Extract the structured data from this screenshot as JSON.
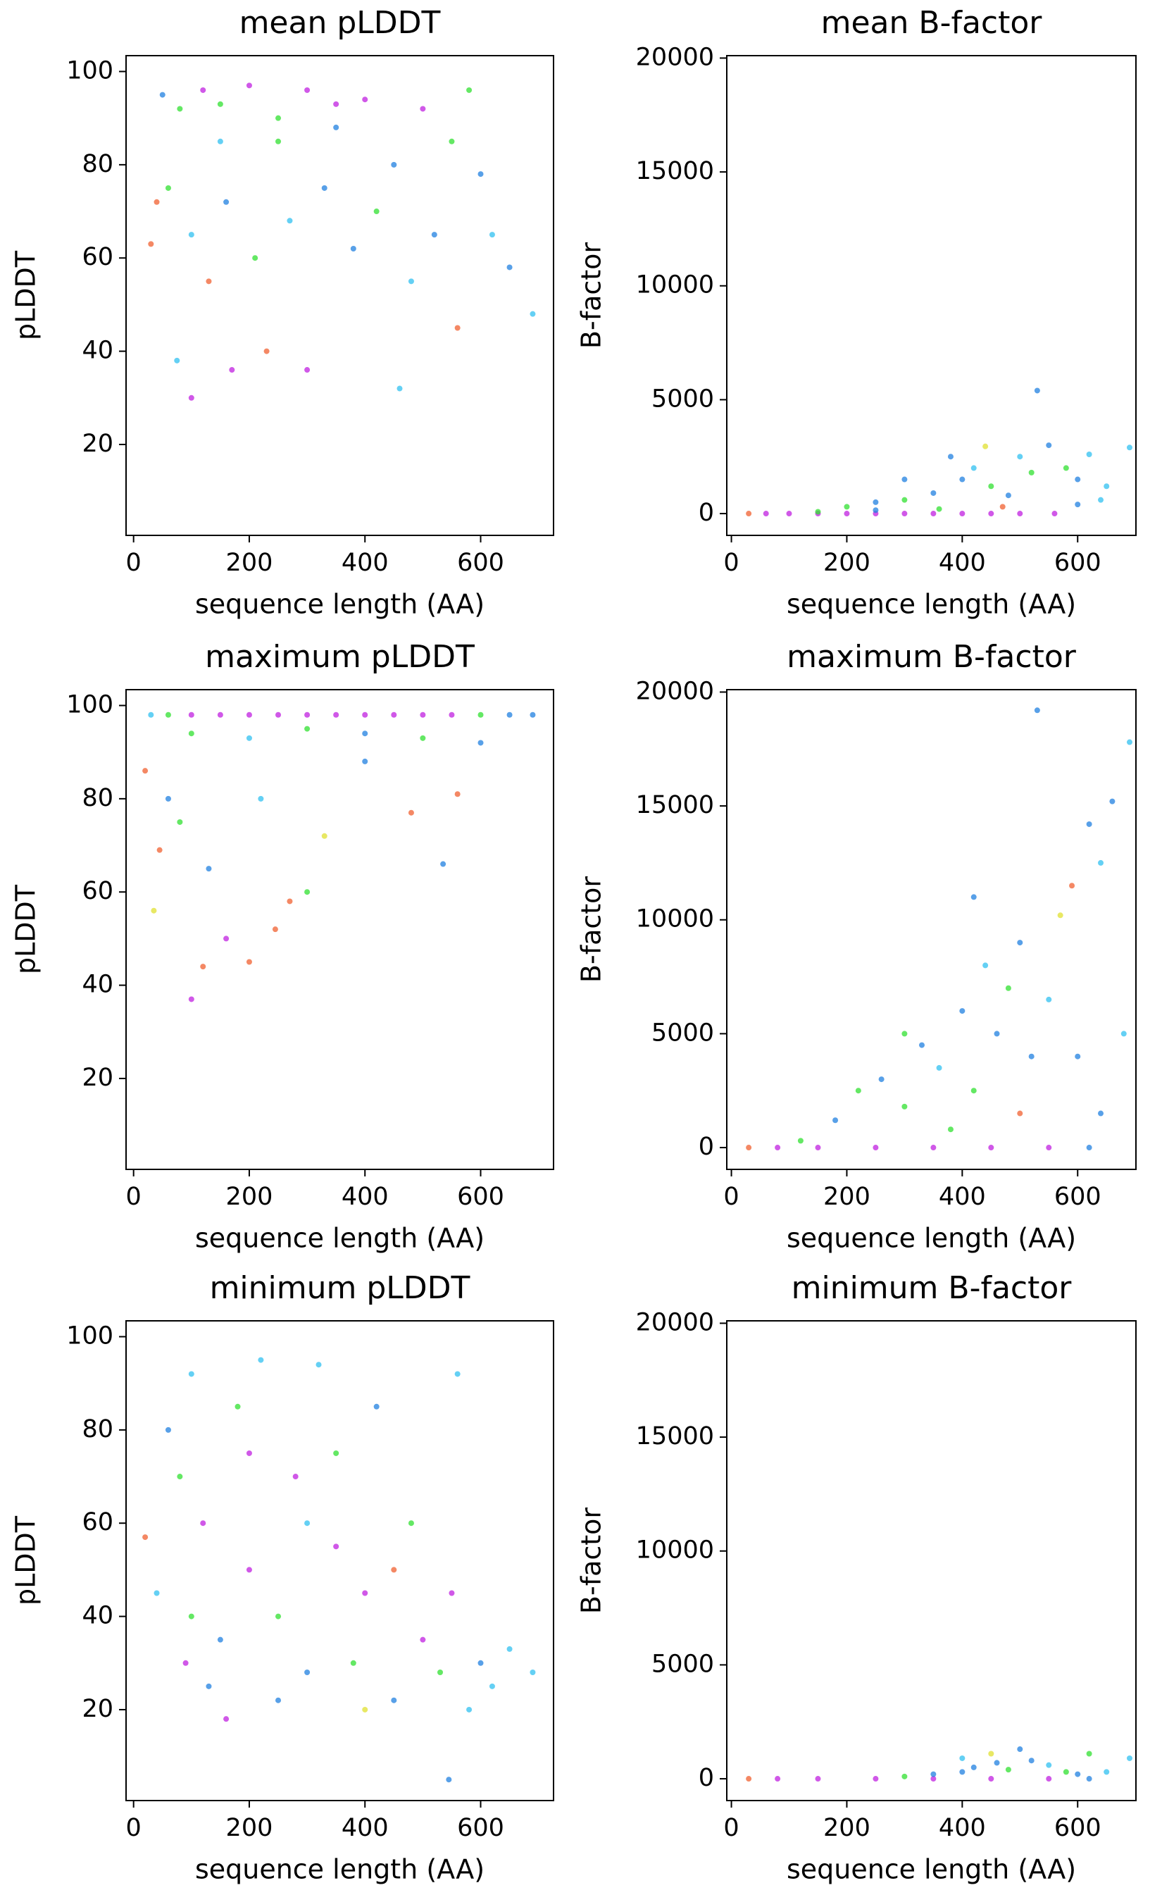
{
  "chart_data": [
    {
      "type": "scatter",
      "title": "mean pLDDT",
      "x_label": "sequence length (AA)",
      "y_label": "pLDDT",
      "xlim": [
        -13,
        726
      ],
      "ylim": [
        0.5,
        103.4
      ],
      "xticks": [
        0,
        200,
        400,
        600
      ],
      "yticks": [
        20,
        40,
        60,
        80,
        100
      ],
      "x": [
        50,
        80,
        120,
        150,
        200,
        250,
        300,
        350,
        400,
        450,
        500,
        550,
        580,
        600,
        620,
        650,
        690,
        60,
        100,
        130,
        160,
        210,
        270,
        330,
        380,
        420,
        480,
        520,
        560,
        40,
        75,
        100,
        170,
        230,
        300,
        460,
        30,
        250,
        350,
        150
      ],
      "values": [
        95,
        92,
        96,
        85,
        97,
        90,
        96,
        88,
        94,
        80,
        92,
        85,
        96,
        78,
        65,
        58,
        48,
        75,
        65,
        55,
        72,
        60,
        68,
        75,
        62,
        70,
        55,
        65,
        45,
        72,
        38,
        30,
        36,
        40,
        36,
        32,
        63,
        85,
        93,
        93
      ],
      "colors": [
        "#2080e0",
        "#30e030",
        "#c020e0",
        "#30c0f0",
        "#c020e0",
        "#30e030",
        "#c020e0",
        "#2080e0",
        "#c020e0",
        "#2080e0",
        "#c020e0",
        "#30e030",
        "#30e030",
        "#2080e0",
        "#30c0f0",
        "#2080e0",
        "#30c0f0",
        "#30e030",
        "#30c0f0",
        "#f06030",
        "#2080e0",
        "#30e030",
        "#30c0f0",
        "#2080e0",
        "#2080e0",
        "#30e030",
        "#30c0f0",
        "#2080e0",
        "#f06030",
        "#f06030",
        "#30c0f0",
        "#c020e0",
        "#c020e0",
        "#f06030",
        "#c020e0",
        "#30c0f0",
        "#f06030",
        "#30e030",
        "#c020e0",
        "#30e030"
      ]
    },
    {
      "type": "scatter",
      "title": "mean B-factor",
      "x_label": "sequence length (AA)",
      "y_label": "B-factor",
      "xlim": [
        -8,
        701
      ],
      "ylim": [
        -957,
        20106
      ],
      "xticks": [
        0,
        200,
        400,
        600
      ],
      "yticks": [
        0,
        5000,
        10000,
        15000,
        20000
      ],
      "x": [
        30,
        60,
        100,
        150,
        200,
        250,
        300,
        350,
        400,
        450,
        500,
        560,
        150,
        200,
        250,
        300,
        350,
        400,
        420,
        450,
        480,
        500,
        530,
        550,
        580,
        600,
        620,
        650,
        690,
        300,
        380,
        440,
        520,
        600,
        640,
        470,
        360,
        250
      ],
      "values": [
        0,
        0,
        0,
        0,
        0,
        0,
        0,
        0,
        0,
        0,
        0,
        0,
        80,
        300,
        500,
        600,
        900,
        1500,
        2000,
        1200,
        800,
        2500,
        5400,
        3000,
        2000,
        1500,
        2600,
        1200,
        2900,
        1500,
        2500,
        2950,
        1800,
        400,
        600,
        300,
        200,
        150
      ],
      "colors": [
        "#f06030",
        "#c020e0",
        "#c020e0",
        "#c020e0",
        "#c020e0",
        "#c020e0",
        "#c020e0",
        "#c020e0",
        "#c020e0",
        "#c020e0",
        "#c020e0",
        "#c020e0",
        "#30e030",
        "#30e030",
        "#2080e0",
        "#30e030",
        "#2080e0",
        "#2080e0",
        "#30c0f0",
        "#30e030",
        "#2080e0",
        "#30c0f0",
        "#2080e0",
        "#2080e0",
        "#30e030",
        "#2080e0",
        "#30c0f0",
        "#30c0f0",
        "#30c0f0",
        "#2080e0",
        "#2080e0",
        "#e0e030",
        "#30e030",
        "#2080e0",
        "#30c0f0",
        "#f06030",
        "#30e030",
        "#2080e0"
      ]
    },
    {
      "type": "scatter",
      "title": "maximum pLDDT",
      "x_label": "sequence length (AA)",
      "y_label": "pLDDT",
      "xlim": [
        -13,
        726
      ],
      "ylim": [
        0.5,
        103.4
      ],
      "xticks": [
        0,
        200,
        400,
        600
      ],
      "yticks": [
        20,
        40,
        60,
        80,
        100
      ],
      "x": [
        30,
        60,
        100,
        150,
        200,
        250,
        300,
        350,
        400,
        450,
        500,
        550,
        600,
        650,
        690,
        100,
        200,
        300,
        400,
        500,
        600,
        20,
        45,
        35,
        60,
        80,
        100,
        120,
        130,
        160,
        200,
        245,
        270,
        300,
        330,
        480,
        535,
        560,
        220,
        400
      ],
      "values": [
        98,
        98,
        98,
        98,
        98,
        98,
        98,
        98,
        98,
        98,
        98,
        98,
        98,
        98,
        98,
        94,
        93,
        95,
        94,
        93,
        92,
        86,
        69,
        56,
        80,
        75,
        37,
        44,
        65,
        50,
        45,
        52,
        58,
        60,
        72,
        77,
        66,
        81,
        80,
        88
      ],
      "colors": [
        "#30c0f0",
        "#30e030",
        "#c020e0",
        "#c020e0",
        "#c020e0",
        "#c020e0",
        "#c020e0",
        "#c020e0",
        "#c020e0",
        "#c020e0",
        "#c020e0",
        "#c020e0",
        "#30e030",
        "#2080e0",
        "#2080e0",
        "#30e030",
        "#30c0f0",
        "#30e030",
        "#2080e0",
        "#30e030",
        "#2080e0",
        "#f06030",
        "#f06030",
        "#e0e030",
        "#2080e0",
        "#30e030",
        "#c020e0",
        "#f06030",
        "#2080e0",
        "#c020e0",
        "#f06030",
        "#f06030",
        "#f06030",
        "#30e030",
        "#e0e030",
        "#f06030",
        "#2080e0",
        "#f06030",
        "#30c0f0",
        "#2080e0"
      ]
    },
    {
      "type": "scatter",
      "title": "maximum B-factor",
      "x_label": "sequence length (AA)",
      "y_label": "B-factor",
      "xlim": [
        -8,
        701
      ],
      "ylim": [
        -957,
        20106
      ],
      "xticks": [
        0,
        200,
        400,
        600
      ],
      "yticks": [
        0,
        5000,
        10000,
        15000,
        20000
      ],
      "x": [
        30,
        80,
        150,
        250,
        350,
        450,
        550,
        620,
        120,
        180,
        220,
        260,
        300,
        330,
        360,
        400,
        420,
        440,
        460,
        480,
        500,
        520,
        530,
        550,
        570,
        590,
        600,
        620,
        640,
        660,
        690,
        680,
        420,
        300,
        500,
        380,
        640
      ],
      "values": [
        0,
        0,
        0,
        0,
        0,
        0,
        0,
        0,
        300,
        1200,
        2500,
        3000,
        1800,
        4500,
        3500,
        6000,
        2500,
        8000,
        5000,
        7000,
        9000,
        4000,
        19200,
        6500,
        10200,
        11500,
        4000,
        14200,
        12500,
        15200,
        17800,
        5000,
        11000,
        5000,
        1500,
        800,
        1500
      ],
      "colors": [
        "#f06030",
        "#c020e0",
        "#c020e0",
        "#c020e0",
        "#c020e0",
        "#c020e0",
        "#c020e0",
        "#2080e0",
        "#30e030",
        "#2080e0",
        "#30e030",
        "#2080e0",
        "#30e030",
        "#2080e0",
        "#30c0f0",
        "#2080e0",
        "#30e030",
        "#30c0f0",
        "#2080e0",
        "#30e030",
        "#2080e0",
        "#2080e0",
        "#2080e0",
        "#30c0f0",
        "#e0e030",
        "#f06030",
        "#2080e0",
        "#2080e0",
        "#30c0f0",
        "#2080e0",
        "#30c0f0",
        "#30c0f0",
        "#2080e0",
        "#30e030",
        "#f06030",
        "#30e030",
        "#2080e0"
      ]
    },
    {
      "type": "scatter",
      "title": "minimum pLDDT",
      "x_label": "sequence length (AA)",
      "y_label": "pLDDT",
      "xlim": [
        -13,
        726
      ],
      "ylim": [
        0.5,
        103.4
      ],
      "xticks": [
        0,
        200,
        400,
        600
      ],
      "yticks": [
        20,
        40,
        60,
        80,
        100
      ],
      "x": [
        20,
        40,
        60,
        80,
        100,
        120,
        150,
        160,
        180,
        200,
        220,
        250,
        280,
        300,
        320,
        350,
        380,
        400,
        420,
        450,
        480,
        500,
        530,
        545,
        560,
        580,
        600,
        620,
        650,
        690,
        100,
        130,
        250,
        350,
        450,
        550,
        90,
        200,
        300,
        400
      ],
      "values": [
        57,
        45,
        80,
        70,
        92,
        60,
        35,
        18,
        85,
        50,
        95,
        40,
        70,
        28,
        94,
        55,
        30,
        45,
        85,
        22,
        60,
        35,
        28,
        5,
        92,
        20,
        30,
        25,
        33,
        28,
        40,
        25,
        22,
        75,
        50,
        45,
        30,
        75,
        60,
        20
      ],
      "colors": [
        "#f06030",
        "#30c0f0",
        "#2080e0",
        "#30e030",
        "#30c0f0",
        "#c020e0",
        "#2080e0",
        "#c020e0",
        "#30e030",
        "#c020e0",
        "#30c0f0",
        "#30e030",
        "#c020e0",
        "#2080e0",
        "#30c0f0",
        "#c020e0",
        "#30e030",
        "#c020e0",
        "#2080e0",
        "#2080e0",
        "#30e030",
        "#c020e0",
        "#30e030",
        "#2080e0",
        "#30c0f0",
        "#30c0f0",
        "#2080e0",
        "#30c0f0",
        "#30c0f0",
        "#30c0f0",
        "#30e030",
        "#2080e0",
        "#2080e0",
        "#30e030",
        "#f06030",
        "#c020e0",
        "#c020e0",
        "#c020e0",
        "#30c0f0",
        "#e0e030"
      ]
    },
    {
      "type": "scatter",
      "title": "minimum B-factor",
      "x_label": "sequence length (AA)",
      "y_label": "B-factor",
      "xlim": [
        -8,
        701
      ],
      "ylim": [
        -957,
        20106
      ],
      "xticks": [
        0,
        200,
        400,
        600
      ],
      "yticks": [
        0,
        5000,
        10000,
        15000,
        20000
      ],
      "x": [
        30,
        80,
        150,
        250,
        350,
        450,
        550,
        620,
        300,
        350,
        400,
        420,
        450,
        480,
        500,
        520,
        550,
        580,
        620,
        650,
        690,
        400,
        460,
        600
      ],
      "values": [
        0,
        0,
        0,
        0,
        0,
        0,
        0,
        0,
        100,
        200,
        900,
        500,
        1100,
        400,
        1300,
        800,
        600,
        300,
        1100,
        300,
        900,
        300,
        700,
        200
      ],
      "colors": [
        "#f06030",
        "#c020e0",
        "#c020e0",
        "#c020e0",
        "#c020e0",
        "#c020e0",
        "#c020e0",
        "#2080e0",
        "#30e030",
        "#2080e0",
        "#30c0f0",
        "#2080e0",
        "#e0e030",
        "#30e030",
        "#2080e0",
        "#2080e0",
        "#30c0f0",
        "#30e030",
        "#30e030",
        "#30c0f0",
        "#30c0f0",
        "#2080e0",
        "#2080e0",
        "#2080e0"
      ]
    }
  ]
}
